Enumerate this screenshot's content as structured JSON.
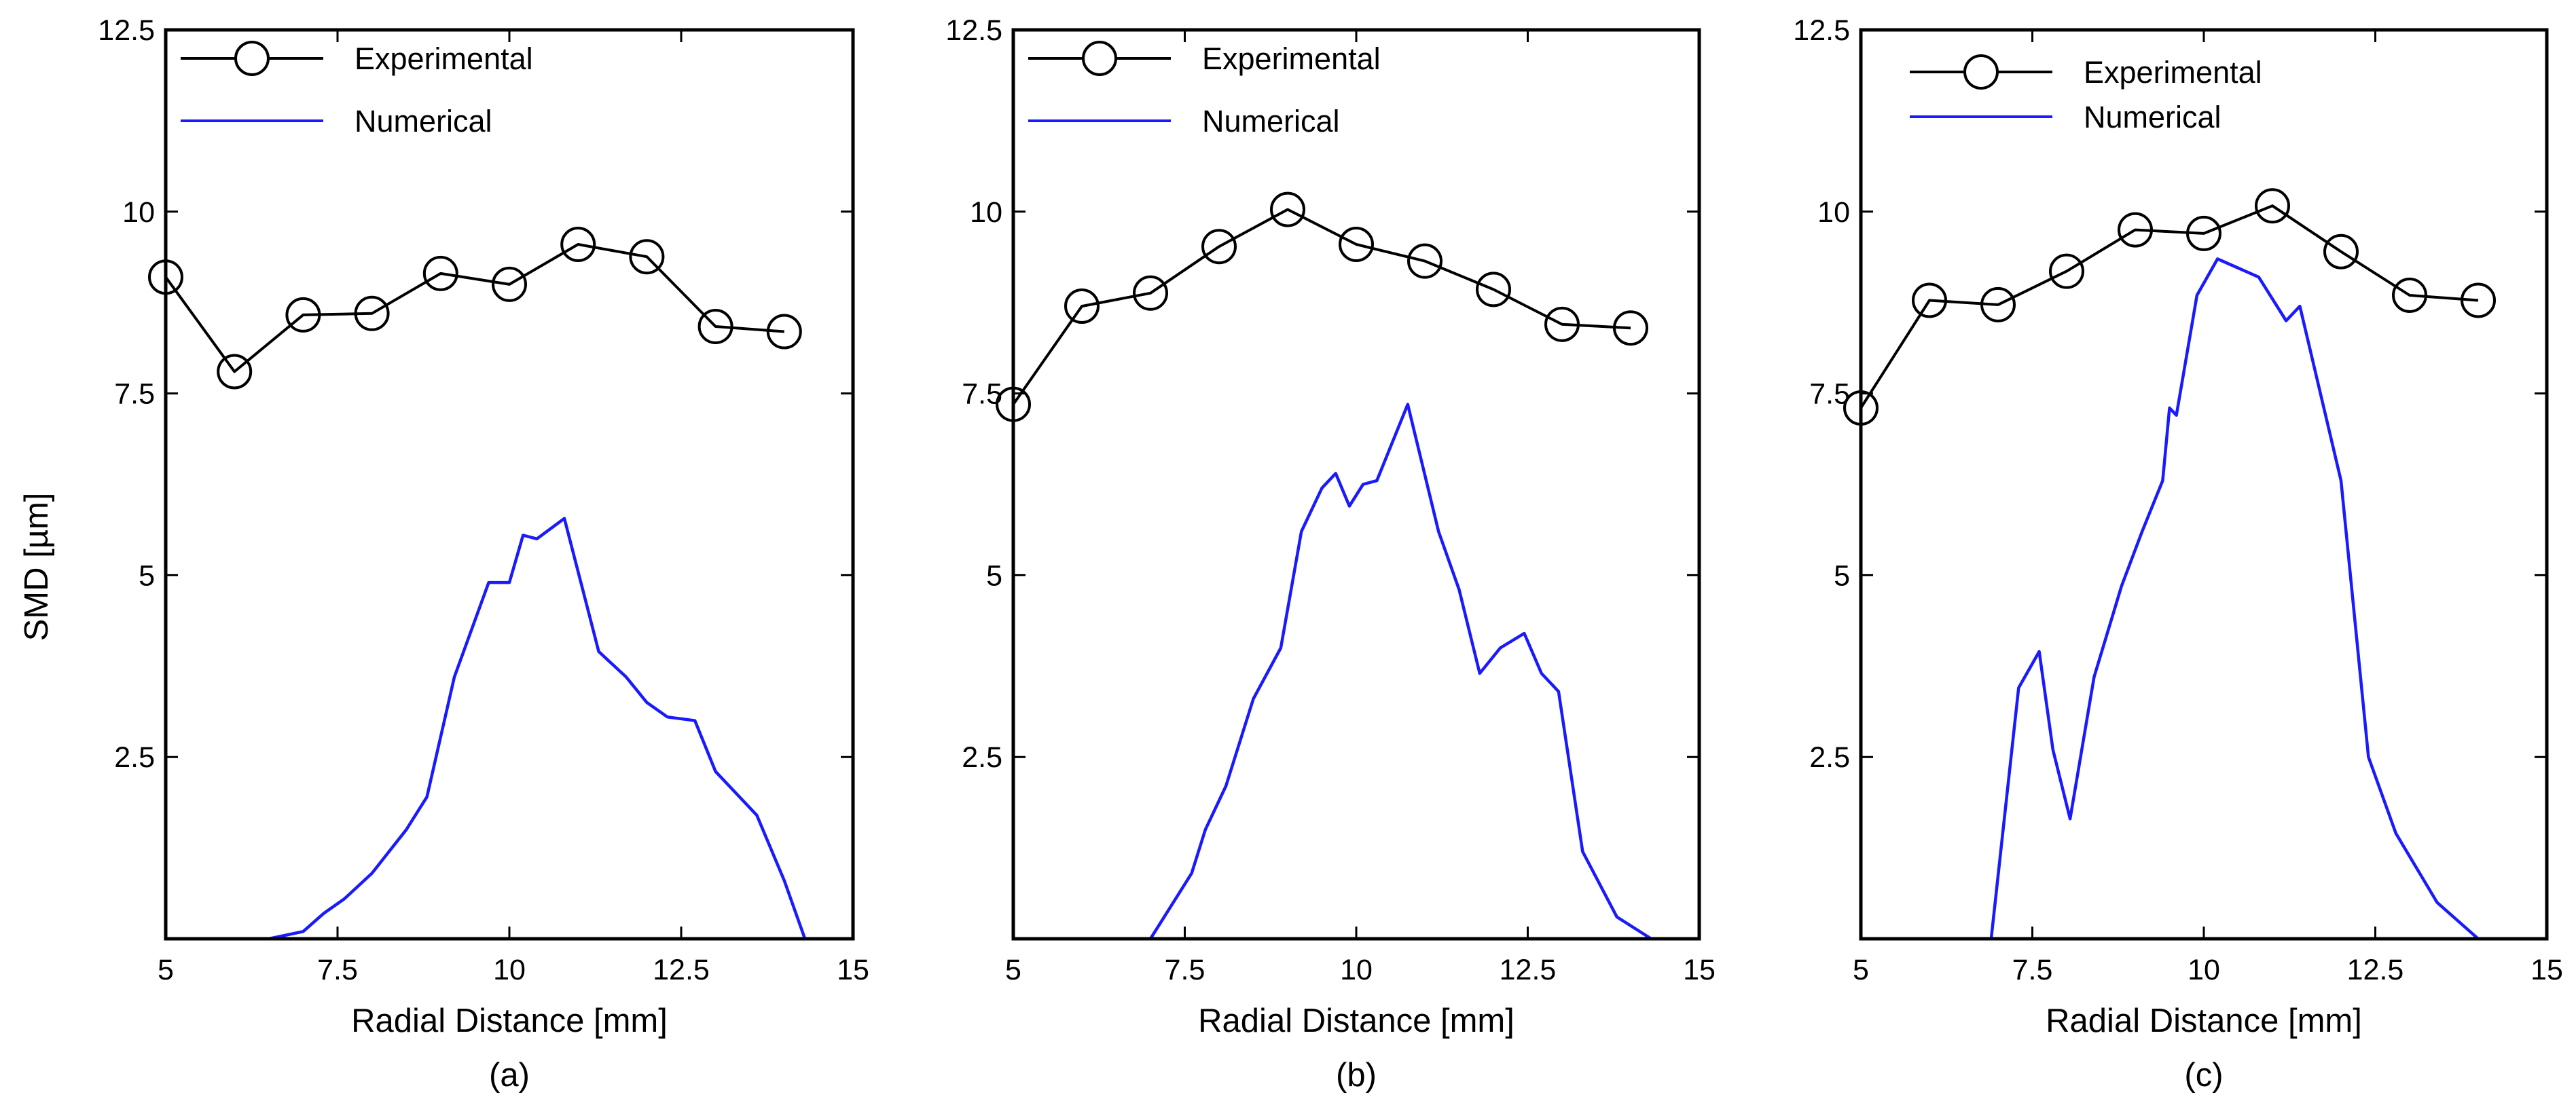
{
  "figure": {
    "ylabel": "SMD [µm]",
    "xlabel": "Radial Distance [mm]"
  },
  "chart_data": [
    {
      "type": "line",
      "caption": "(a)",
      "xlabel": "Radial Distance [mm]",
      "ylabel": "SMD [µm]",
      "xlim": [
        5,
        15
      ],
      "ylim": [
        0,
        12.5
      ],
      "xticks": [
        5,
        7.5,
        10,
        12.5,
        15
      ],
      "xtick_labels": [
        "5",
        "7.5",
        "10",
        "12.5",
        "15"
      ],
      "yticks": [
        2.5,
        5,
        7.5,
        10,
        12.5
      ],
      "ytick_labels": [
        "2.5",
        "5",
        "7.5",
        "10",
        "12.5"
      ],
      "legend_position": "top-left",
      "series": [
        {
          "name": "Experimental",
          "color": "#000000",
          "marker": "circle",
          "x": [
            5,
            6,
            7,
            8,
            9,
            10,
            11,
            12,
            13,
            14
          ],
          "y": [
            9.1,
            7.8,
            8.58,
            8.6,
            9.15,
            9.0,
            9.55,
            9.38,
            8.42,
            8.35
          ]
        },
        {
          "name": "Numerical",
          "color": "#1a1aff",
          "marker": "none",
          "x": [
            5,
            6.5,
            7.0,
            7.3,
            7.6,
            8.0,
            8.5,
            8.8,
            9.2,
            9.7,
            10.0,
            10.2,
            10.4,
            10.8,
            11.3,
            11.7,
            12.0,
            12.3,
            12.7,
            13.0,
            13.6,
            14.0,
            14.3,
            15
          ],
          "y": [
            0,
            0,
            0.1,
            0.35,
            0.55,
            0.9,
            1.5,
            1.95,
            3.6,
            4.9,
            4.9,
            5.55,
            5.5,
            5.78,
            3.95,
            3.6,
            3.25,
            3.05,
            3.0,
            2.3,
            1.7,
            0.8,
            0.0,
            0.0
          ]
        }
      ]
    },
    {
      "type": "line",
      "caption": "(b)",
      "xlabel": "Radial Distance [mm]",
      "ylabel": "",
      "xlim": [
        5,
        15
      ],
      "ylim": [
        0,
        12.5
      ],
      "xticks": [
        5,
        7.5,
        10,
        12.5,
        15
      ],
      "xtick_labels": [
        "5",
        "7.5",
        "10",
        "12.5",
        "15"
      ],
      "yticks": [
        2.5,
        5,
        7.5,
        10,
        12.5
      ],
      "ytick_labels": [
        "2.5",
        "5",
        "7.5",
        "10",
        "12.5"
      ],
      "legend_position": "top-left",
      "series": [
        {
          "name": "Experimental",
          "color": "#000000",
          "marker": "circle",
          "x": [
            5,
            6,
            7,
            8,
            9,
            10,
            11,
            12,
            13,
            14
          ],
          "y": [
            7.35,
            8.7,
            8.88,
            9.52,
            10.03,
            9.55,
            9.32,
            8.93,
            8.45,
            8.4
          ]
        },
        {
          "name": "Numerical",
          "color": "#1a1aff",
          "marker": "none",
          "x": [
            5,
            7.0,
            7.3,
            7.6,
            7.8,
            8.1,
            8.5,
            8.9,
            9.2,
            9.5,
            9.7,
            9.9,
            10.1,
            10.3,
            10.75,
            11.2,
            11.5,
            11.8,
            12.1,
            12.45,
            12.7,
            12.95,
            13.3,
            13.8,
            14.3,
            15
          ],
          "y": [
            0,
            0,
            0.45,
            0.9,
            1.5,
            2.1,
            3.3,
            4.0,
            5.6,
            6.2,
            6.4,
            5.95,
            6.25,
            6.3,
            7.35,
            5.6,
            4.8,
            3.65,
            4.0,
            4.2,
            3.65,
            3.4,
            1.2,
            0.3,
            0.0,
            0.0
          ]
        }
      ]
    },
    {
      "type": "line",
      "caption": "(c)",
      "xlabel": "Radial Distance [mm]",
      "ylabel": "",
      "xlim": [
        5,
        15
      ],
      "ylim": [
        0,
        12.5
      ],
      "xticks": [
        5,
        7.5,
        10,
        12.5,
        15
      ],
      "xtick_labels": [
        "5",
        "7.5",
        "10",
        "12.5",
        "15"
      ],
      "yticks": [
        2.5,
        5,
        7.5,
        10,
        12.5
      ],
      "ytick_labels": [
        "2.5",
        "5",
        "7.5",
        "10",
        "12.5"
      ],
      "legend_position": "top-left",
      "series": [
        {
          "name": "Experimental",
          "color": "#000000",
          "marker": "circle",
          "x": [
            5,
            6,
            7,
            8,
            9,
            10,
            11,
            12,
            13,
            14
          ],
          "y": [
            7.3,
            8.78,
            8.72,
            9.18,
            9.75,
            9.7,
            10.08,
            9.45,
            8.85,
            8.78
          ]
        },
        {
          "name": "Numerical",
          "color": "#1a1aff",
          "marker": "none",
          "x": [
            5,
            6.9,
            7.3,
            7.6,
            7.8,
            8.05,
            8.4,
            8.8,
            9.1,
            9.4,
            9.5,
            9.6,
            9.9,
            10.2,
            10.8,
            11.2,
            11.4,
            11.7,
            12.0,
            12.4,
            12.8,
            13.4,
            14.0,
            15
          ],
          "y": [
            0,
            0,
            3.45,
            3.95,
            2.6,
            1.65,
            3.6,
            4.85,
            5.6,
            6.3,
            7.3,
            7.2,
            8.85,
            9.35,
            9.1,
            8.5,
            8.7,
            7.5,
            6.3,
            2.5,
            1.45,
            0.5,
            0.0,
            0.0
          ]
        }
      ]
    }
  ]
}
